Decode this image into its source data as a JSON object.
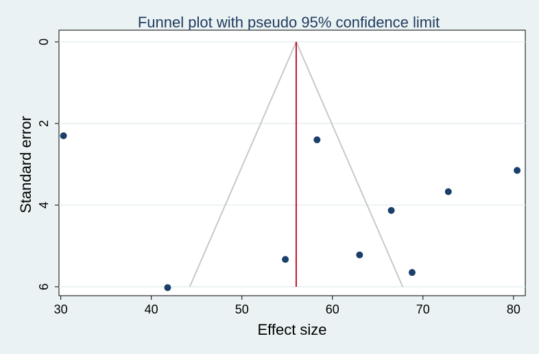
{
  "chart_data": {
    "type": "scatter",
    "title": "Funnel plot with pseudo 95% confidence limit",
    "xlabel": "Effect size",
    "ylabel": "Standard error",
    "xlim": [
      29.8,
      81.3
    ],
    "ylim": [
      0,
      6.2
    ],
    "y_reversed": true,
    "x_ticks": [
      30,
      40,
      50,
      60,
      70,
      80
    ],
    "y_ticks": [
      0,
      2,
      4,
      6
    ],
    "grid": "horizontal",
    "pooled_effect": 56.0,
    "confidence_limit_se_max": 6.0,
    "confidence_limit_z": 1.96,
    "points": [
      {
        "x": 30.3,
        "y": 2.3
      },
      {
        "x": 41.8,
        "y": 6.02
      },
      {
        "x": 54.8,
        "y": 5.33
      },
      {
        "x": 58.3,
        "y": 2.4
      },
      {
        "x": 63.0,
        "y": 5.22
      },
      {
        "x": 66.5,
        "y": 4.13
      },
      {
        "x": 68.8,
        "y": 5.65
      },
      {
        "x": 72.8,
        "y": 3.67
      },
      {
        "x": 80.4,
        "y": 3.15
      }
    ],
    "colors": {
      "background": "#eaf2f3",
      "plot_background": "#ffffff",
      "marker": "#1a3f6b",
      "pooled_line": "#c0142c",
      "funnel": "#c8c8c8",
      "grid": "#e6eef0",
      "title": "#1f3a5f"
    }
  }
}
